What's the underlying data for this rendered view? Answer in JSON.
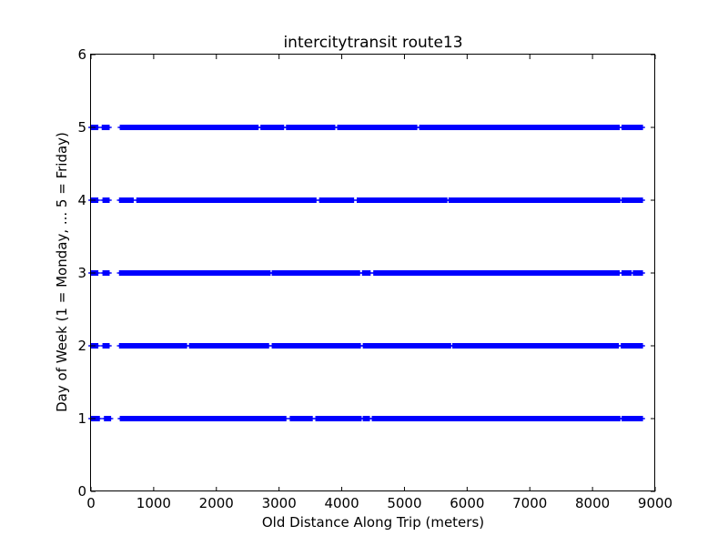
{
  "chart_data": {
    "type": "scatter",
    "title": "intercitytransit route13",
    "xlabel": "Old Distance Along Trip (meters)",
    "ylabel": "Day of Week (1 = Monday, ... 5 = Friday)",
    "xlim": [
      0,
      9000
    ],
    "ylim": [
      0,
      6
    ],
    "xticks": [
      0,
      1000,
      2000,
      3000,
      4000,
      5000,
      6000,
      7000,
      8000,
      9000
    ],
    "yticks": [
      0,
      1,
      2,
      3,
      4,
      5,
      6
    ],
    "grid": false,
    "legend": "none",
    "marker": "plus",
    "color": "#0000ff",
    "series": [
      {
        "y": 1,
        "x_start": 0,
        "x_end": 8800,
        "x_gaps": [
          [
            140,
            210
          ],
          [
            320,
            460
          ],
          [
            3120,
            3170
          ],
          [
            3540,
            3580
          ],
          [
            4310,
            4340
          ],
          [
            4450,
            4480
          ],
          [
            8440,
            8460
          ]
        ]
      },
      {
        "y": 2,
        "x_start": 0,
        "x_end": 8800,
        "x_gaps": [
          [
            120,
            180
          ],
          [
            290,
            450
          ],
          [
            1530,
            1560
          ],
          [
            2840,
            2880
          ],
          [
            4300,
            4340
          ],
          [
            5740,
            5760
          ],
          [
            8420,
            8450
          ]
        ]
      },
      {
        "y": 3,
        "x_start": 0,
        "x_end": 8800,
        "x_gaps": [
          [
            120,
            190
          ],
          [
            300,
            450
          ],
          [
            2860,
            2890
          ],
          [
            4290,
            4320
          ],
          [
            4460,
            4500
          ],
          [
            8430,
            8460
          ],
          [
            8620,
            8640
          ]
        ]
      },
      {
        "y": 4,
        "x_start": 0,
        "x_end": 8800,
        "x_gaps": [
          [
            120,
            180
          ],
          [
            290,
            450
          ],
          [
            680,
            720
          ],
          [
            3600,
            3640
          ],
          [
            4200,
            4240
          ],
          [
            5680,
            5710
          ],
          [
            8440,
            8470
          ]
        ]
      },
      {
        "y": 5,
        "x_start": 0,
        "x_end": 8800,
        "x_gaps": [
          [
            120,
            170
          ],
          [
            300,
            460
          ],
          [
            2670,
            2700
          ],
          [
            3080,
            3110
          ],
          [
            3900,
            3930
          ],
          [
            5200,
            5240
          ],
          [
            8430,
            8460
          ]
        ]
      }
    ]
  }
}
